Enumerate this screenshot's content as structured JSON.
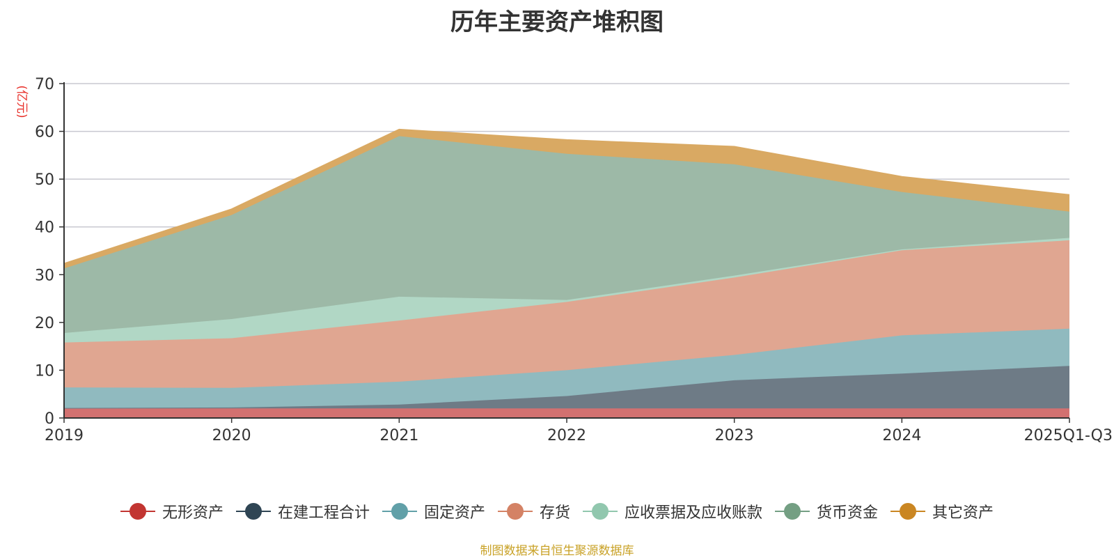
{
  "chart_data": {
    "type": "area",
    "stacked": true,
    "title": "历年主要资产堆积图",
    "ylabel": "(亿元)",
    "ylim": [
      0,
      70
    ],
    "yticks": [
      0,
      10,
      20,
      30,
      40,
      50,
      60,
      70
    ],
    "categories": [
      "2019",
      "2020",
      "2021",
      "2022",
      "2023",
      "2024",
      "2025Q1-Q3"
    ],
    "series": [
      {
        "name": "无形资产",
        "color": "#c23531",
        "fill": "#d27170",
        "values": [
          2.0,
          2.0,
          2.0,
          2.0,
          2.0,
          2.0,
          2.0
        ]
      },
      {
        "name": "在建工程合计",
        "color": "#2f4554",
        "fill": "#6e7b86",
        "values": [
          0.1,
          0.2,
          0.8,
          2.6,
          5.9,
          7.3,
          8.9
        ]
      },
      {
        "name": "固定资产",
        "color": "#61a0a8",
        "fill": "#90babf",
        "values": [
          4.3,
          4.1,
          4.8,
          5.4,
          5.3,
          8.0,
          7.8
        ]
      },
      {
        "name": "存货",
        "color": "#d48265",
        "fill": "#e0a691",
        "values": [
          9.4,
          10.4,
          12.8,
          14.3,
          16.2,
          17.8,
          18.5
        ]
      },
      {
        "name": "应收票据及应收账款",
        "color": "#91c7ae",
        "fill": "#b1d7c5",
        "values": [
          2.0,
          4.0,
          5.0,
          0.4,
          0.4,
          0.2,
          0.5
        ]
      },
      {
        "name": "货币资金",
        "color": "#749f83",
        "fill": "#9db9a7",
        "values": [
          13.5,
          21.8,
          33.6,
          30.6,
          23.3,
          12.0,
          5.5
        ]
      },
      {
        "name": "其它资产",
        "color": "#ca8622",
        "fill": "#d9a963",
        "values": [
          1.0,
          1.2,
          1.4,
          2.9,
          3.7,
          3.2,
          3.5
        ]
      }
    ]
  },
  "source_note": "制图数据来自恒生聚源数据库"
}
